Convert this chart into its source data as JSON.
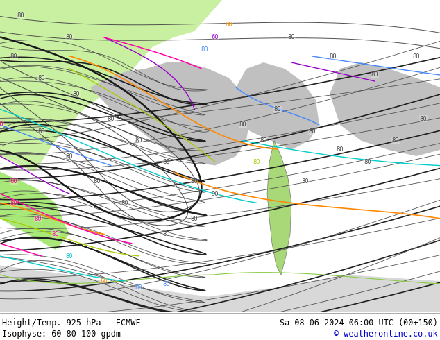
{
  "bottom_left_line1": "Height/Temp. 925 hPa   ECMWF",
  "bottom_left_line2": "Isophyse: 60 80 100 gpdm",
  "bottom_right_line1": "Sa 08-06-2024 06:00 UTC (00+150)",
  "bottom_right_line2": "© weatheronline.co.uk",
  "bg_color": "#ffffff",
  "text_color": "#000000",
  "copyright_color": "#0000cc",
  "fig_width": 6.34,
  "fig_height": 4.9,
  "dpi": 100,
  "font_size_bottom": 8.5,
  "map_colors": {
    "sea_light": "#d4f0d4",
    "land_green": "#c8f0a0",
    "land_green2": "#b8e890",
    "highland_gray": "#c8c8c8",
    "highland_gray2": "#b8b8b8"
  },
  "contour_gray": "#606060",
  "contour_dark": "#303030",
  "contour_black": "#101010",
  "temp_colors": {
    "orange": "#ff8800",
    "yellow": "#d4c800",
    "cyan": "#00cccc",
    "blue": "#0066ff",
    "lightblue": "#44aaff",
    "green": "#00bb00",
    "purple": "#9900cc",
    "magenta": "#ff00aa",
    "red": "#ff0000",
    "pink": "#ff66cc"
  }
}
